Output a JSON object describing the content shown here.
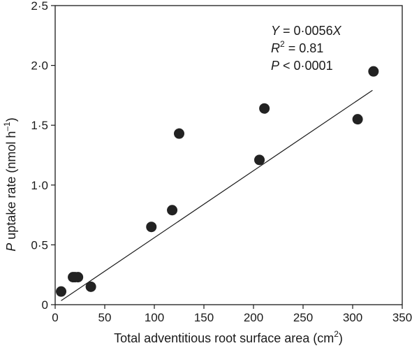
{
  "chart_data": {
    "type": "scatter",
    "xlabel": {
      "pre": "Total adventitious root surface area (cm",
      "sup": "2",
      "post": ")"
    },
    "ylabel": {
      "var": "P",
      "pre": " uptake rate (nmol h",
      "sup": "–1",
      "post": ")"
    },
    "xlim": [
      0,
      350
    ],
    "ylim": [
      0,
      2.5
    ],
    "x_ticks": [
      {
        "value": 0,
        "label": "0"
      },
      {
        "value": 50,
        "label": "50"
      },
      {
        "value": 100,
        "label": "100"
      },
      {
        "value": 150,
        "label": "150"
      },
      {
        "value": 200,
        "label": "200"
      },
      {
        "value": 250,
        "label": "250"
      },
      {
        "value": 300,
        "label": "300"
      },
      {
        "value": 350,
        "label": "350"
      }
    ],
    "y_ticks": [
      {
        "value": 0,
        "label": "0"
      },
      {
        "value": 0.5,
        "label": "0·5"
      },
      {
        "value": 1.0,
        "label": "1·0"
      },
      {
        "value": 1.5,
        "label": "1·5"
      },
      {
        "value": 2.0,
        "label": "2·0"
      },
      {
        "value": 2.5,
        "label": "2·5"
      }
    ],
    "points": [
      {
        "x": 6,
        "y": 0.11
      },
      {
        "x": 18,
        "y": 0.23
      },
      {
        "x": 20,
        "y": 0.23
      },
      {
        "x": 23,
        "y": 0.23
      },
      {
        "x": 36,
        "y": 0.15
      },
      {
        "x": 97,
        "y": 0.65
      },
      {
        "x": 118,
        "y": 0.79
      },
      {
        "x": 125,
        "y": 1.43
      },
      {
        "x": 206,
        "y": 1.21
      },
      {
        "x": 211,
        "y": 1.64
      },
      {
        "x": 305,
        "y": 1.55
      },
      {
        "x": 321,
        "y": 1.95
      }
    ],
    "fit_line": {
      "slope": 0.0056,
      "x_start": 6,
      "x_end": 320
    },
    "annotations": {
      "eq": {
        "var1": "Y",
        "mid": " = 0·0056",
        "var2": "X"
      },
      "r2": {
        "var": "R",
        "sup": "2",
        "post": " = 0.81"
      },
      "p": {
        "var": "P",
        "post": " < 0·0001"
      }
    },
    "grid": false,
    "legend": "none",
    "colors": {
      "marker": "#222222",
      "line": "#1a1a1a",
      "axis": "#1a1a1a"
    }
  }
}
